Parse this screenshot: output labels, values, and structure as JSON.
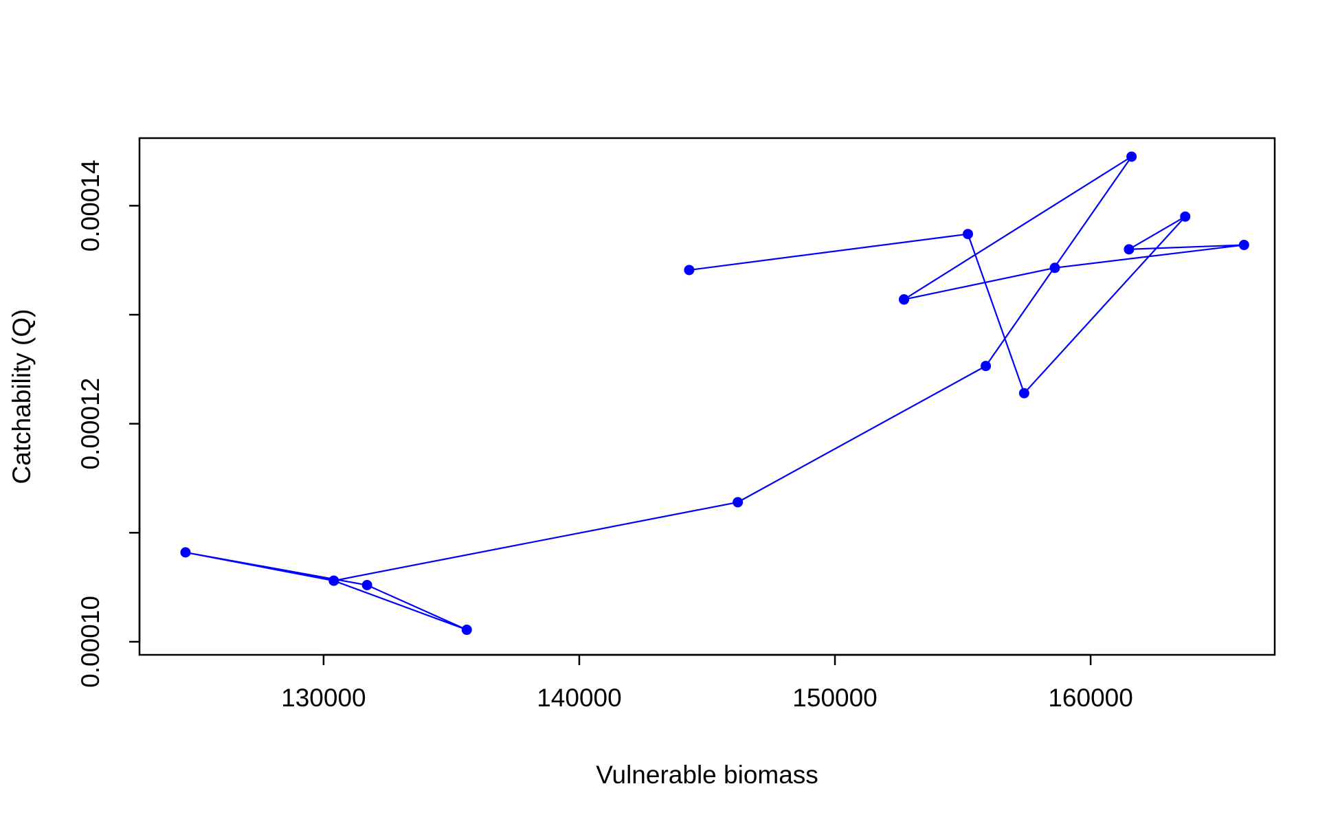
{
  "chart_data": {
    "type": "line",
    "title": "",
    "xlabel": "Vulnerable biomass",
    "ylabel": "Catchability (Q)",
    "xlim": [
      122800,
      167200
    ],
    "ylim": [
      9.88e-05,
      0.0001462
    ],
    "xticks": [
      130000,
      140000,
      150000,
      160000
    ],
    "xtick_labels": [
      "130000",
      "140000",
      "150000",
      "160000"
    ],
    "yticks": [
      0.0001,
      0.00011,
      0.00012,
      0.00013,
      0.00014
    ],
    "ytick_labels": [
      "0.00010",
      "",
      "0.00012",
      "",
      "0.00014"
    ],
    "grid": false,
    "legend": "none",
    "series": [
      {
        "color": "#0000ff",
        "marker": "filled-circle",
        "x": [
          144300,
          152700,
          161600,
          155900,
          146200,
          130400,
          124600,
          130400,
          131700,
          135600
        ],
        "y": [
          0.0001341,
          0.0001314,
          0.0001445,
          0.0001253,
          0.0001128,
          0.0001056,
          0.0001082,
          0.0001056,
          0.0001052,
          0.0001011
        ],
        "x2": [
          155200,
          157400,
          163700,
          161500,
          166000,
          158600,
          152700
        ],
        "y2": [
          0.0001374,
          0.0001228,
          0.000139,
          0.000136,
          0.0001364,
          0.0001343,
          0.0001314
        ]
      }
    ]
  }
}
